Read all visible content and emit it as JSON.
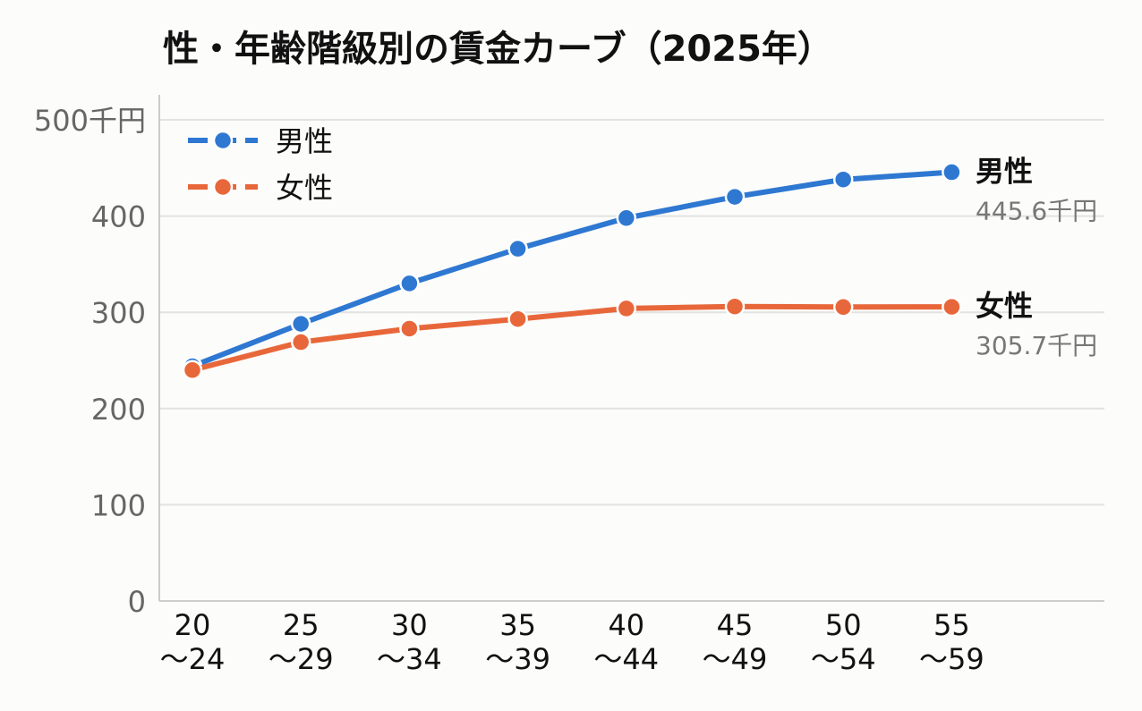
{
  "chart_data": {
    "type": "line",
    "title": "性・年齢階級別の賃金カーブ（2025年）",
    "xlabel": "",
    "ylabel": "",
    "categories": [
      [
        "20",
        "～24"
      ],
      [
        "25",
        "～29"
      ],
      [
        "30",
        "～34"
      ],
      [
        "35",
        "～39"
      ],
      [
        "40",
        "～44"
      ],
      [
        "45",
        "～49"
      ],
      [
        "50",
        "～54"
      ],
      [
        "55",
        "～59"
      ]
    ],
    "yticks": [
      "0",
      "100",
      "200",
      "300",
      "400",
      "500千円"
    ],
    "ylim": [
      0,
      500
    ],
    "grid": true,
    "legend": {
      "placement": "top-left",
      "entries": [
        "男性",
        "女性"
      ]
    },
    "series": [
      {
        "name": "男性",
        "color": "#2e78d2",
        "values": [
          244,
          288,
          330,
          366,
          398,
          420,
          438,
          445.6
        ],
        "end_label": "男性",
        "end_value_label": "445.6千円"
      },
      {
        "name": "女性",
        "color": "#e8673a",
        "values": [
          240,
          269,
          283,
          293,
          304,
          306,
          305.5,
          305.7
        ],
        "end_label": "女性",
        "end_value_label": "305.7千円"
      }
    ],
    "colors": {
      "grid": "#e2e2e2",
      "axis": "#cccccc",
      "tick_text": "#666666",
      "end_value_text": "#777777",
      "text": "#111111"
    }
  }
}
